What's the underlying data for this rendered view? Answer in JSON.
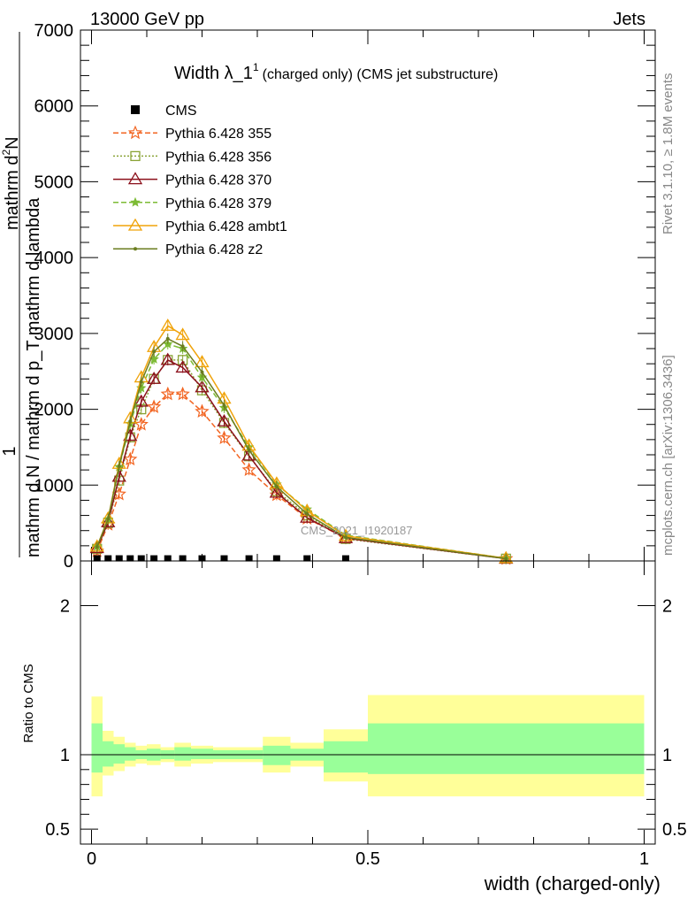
{
  "header": {
    "left": "13000 GeV pp",
    "right": "Jets"
  },
  "side_labels": {
    "rivet": "Rivet 3.1.10, ≥ 1.8M events",
    "mcplots": "mcplots.cern.ch [arXiv:1306.3436]"
  },
  "watermark": "CMS_2021_I1920187",
  "chart_data": [
    {
      "type": "line",
      "title_main": "Width λ_1",
      "title_sup": "1",
      "title_rest": "(charged only) (CMS jet substructure)",
      "ylabel_num": "1",
      "ylabel_den": "mathrm d N / mathrm d p_T mathrm d lambda",
      "ylabel_top_line1": "mathrm d",
      "ylabel_top_line2": "2",
      "ylabel_top_line3": "N",
      "ylabel_full": "mathrm d^2N / mathrm d p_T mathrm d lambda",
      "ylim": [
        0,
        7000
      ],
      "xlim": [
        -0.02,
        1.02
      ],
      "yticks": [
        "0",
        "1000",
        "2000",
        "3000",
        "4000",
        "5000",
        "6000",
        "7000"
      ],
      "legend_position": "top-left",
      "cms": {
        "name": "CMS",
        "color": "#000000",
        "x": [
          0.01,
          0.03,
          0.05,
          0.07,
          0.09,
          0.113,
          0.138,
          0.165,
          0.2,
          0.24,
          0.285,
          0.335,
          0.39,
          0.46
        ],
        "y": [
          5,
          5,
          5,
          5,
          5,
          5,
          5,
          5,
          5,
          5,
          5,
          5,
          5,
          5
        ]
      },
      "x": [
        0.01,
        0.03,
        0.05,
        0.07,
        0.09,
        0.113,
        0.138,
        0.165,
        0.2,
        0.24,
        0.285,
        0.335,
        0.39,
        0.46,
        0.75
      ],
      "series": [
        {
          "name": "Pythia 6.428 355",
          "color": "#f26522",
          "dash": "6,3",
          "marker": "star",
          "values": [
            130,
            480,
            880,
            1340,
            1800,
            2030,
            2200,
            2200,
            1970,
            1620,
            1200,
            870,
            560,
            300,
            30
          ]
        },
        {
          "name": "Pythia 6.428 356",
          "color": "#8aa336",
          "dash": "2,2",
          "marker": "square",
          "values": [
            160,
            500,
            1060,
            1630,
            2000,
            2400,
            2650,
            2650,
            2250,
            1820,
            1380,
            920,
            600,
            290,
            30
          ]
        },
        {
          "name": "Pythia 6.428 370",
          "color": "#8b0f1a",
          "dash": "",
          "marker": "triangle",
          "values": [
            170,
            510,
            1110,
            1650,
            2100,
            2400,
            2650,
            2550,
            2290,
            1840,
            1390,
            900,
            570,
            300,
            30
          ]
        },
        {
          "name": "Pythia 6.428 379",
          "color": "#7dbb35",
          "dash": "6,3",
          "marker": "star-small",
          "values": [
            190,
            550,
            1240,
            1810,
            2280,
            2660,
            2860,
            2800,
            2420,
            2020,
            1500,
            1010,
            680,
            340,
            35
          ]
        },
        {
          "name": "Pythia 6.428 ambt1",
          "color": "#f0a30a",
          "dash": "",
          "marker": "triangle",
          "values": [
            190,
            560,
            1280,
            1880,
            2420,
            2820,
            3100,
            2980,
            2620,
            2140,
            1520,
            1020,
            660,
            330,
            35
          ]
        },
        {
          "name": "Pythia 6.428 z2",
          "color": "#6b7d1f",
          "dash": "",
          "marker": "dot",
          "values": [
            185,
            555,
            1250,
            1840,
            2360,
            2760,
            2930,
            2830,
            2490,
            2050,
            1460,
            980,
            620,
            310,
            30
          ]
        }
      ]
    },
    {
      "type": "area",
      "ylabel": "Ratio to CMS",
      "xlabel": "width (charged-only)",
      "ylim": [
        0.4,
        2.3
      ],
      "xlim": [
        -0.02,
        1.02
      ],
      "yticks": [
        "0.5",
        "1",
        "2"
      ],
      "xticks": [
        "0",
        "0.5",
        "1"
      ],
      "reference_line": 1,
      "band_colors": {
        "outer": "#ffff99",
        "inner": "#99ff99"
      },
      "bins": [
        {
          "x0": 0.0,
          "x1": 0.02,
          "outer": [
            0.72,
            1.39
          ],
          "inner": [
            0.88,
            1.21
          ]
        },
        {
          "x0": 0.02,
          "x1": 0.04,
          "outer": [
            0.86,
            1.16
          ],
          "inner": [
            0.92,
            1.09
          ]
        },
        {
          "x0": 0.04,
          "x1": 0.06,
          "outer": [
            0.89,
            1.12
          ],
          "inner": [
            0.94,
            1.07
          ]
        },
        {
          "x0": 0.06,
          "x1": 0.08,
          "outer": [
            0.92,
            1.08
          ],
          "inner": [
            0.96,
            1.05
          ]
        },
        {
          "x0": 0.08,
          "x1": 0.1,
          "outer": [
            0.94,
            1.06
          ],
          "inner": [
            0.97,
            1.03
          ]
        },
        {
          "x0": 0.1,
          "x1": 0.125,
          "outer": [
            0.93,
            1.07
          ],
          "inner": [
            0.96,
            1.04
          ]
        },
        {
          "x0": 0.125,
          "x1": 0.15,
          "outer": [
            0.95,
            1.05
          ],
          "inner": [
            0.97,
            1.03
          ]
        },
        {
          "x0": 0.15,
          "x1": 0.18,
          "outer": [
            0.92,
            1.08
          ],
          "inner": [
            0.96,
            1.05
          ]
        },
        {
          "x0": 0.18,
          "x1": 0.22,
          "outer": [
            0.94,
            1.06
          ],
          "inner": [
            0.97,
            1.04
          ]
        },
        {
          "x0": 0.22,
          "x1": 0.26,
          "outer": [
            0.95,
            1.05
          ],
          "inner": [
            0.97,
            1.03
          ]
        },
        {
          "x0": 0.26,
          "x1": 0.31,
          "outer": [
            0.95,
            1.05
          ],
          "inner": [
            0.97,
            1.03
          ]
        },
        {
          "x0": 0.31,
          "x1": 0.36,
          "outer": [
            0.88,
            1.12
          ],
          "inner": [
            0.93,
            1.06
          ]
        },
        {
          "x0": 0.36,
          "x1": 0.42,
          "outer": [
            0.92,
            1.08
          ],
          "inner": [
            0.96,
            1.04
          ]
        },
        {
          "x0": 0.42,
          "x1": 0.5,
          "outer": [
            0.82,
            1.17
          ],
          "inner": [
            0.88,
            1.09
          ]
        },
        {
          "x0": 0.5,
          "x1": 1.0,
          "outer": [
            0.72,
            1.4
          ],
          "inner": [
            0.87,
            1.21
          ]
        }
      ]
    }
  ]
}
